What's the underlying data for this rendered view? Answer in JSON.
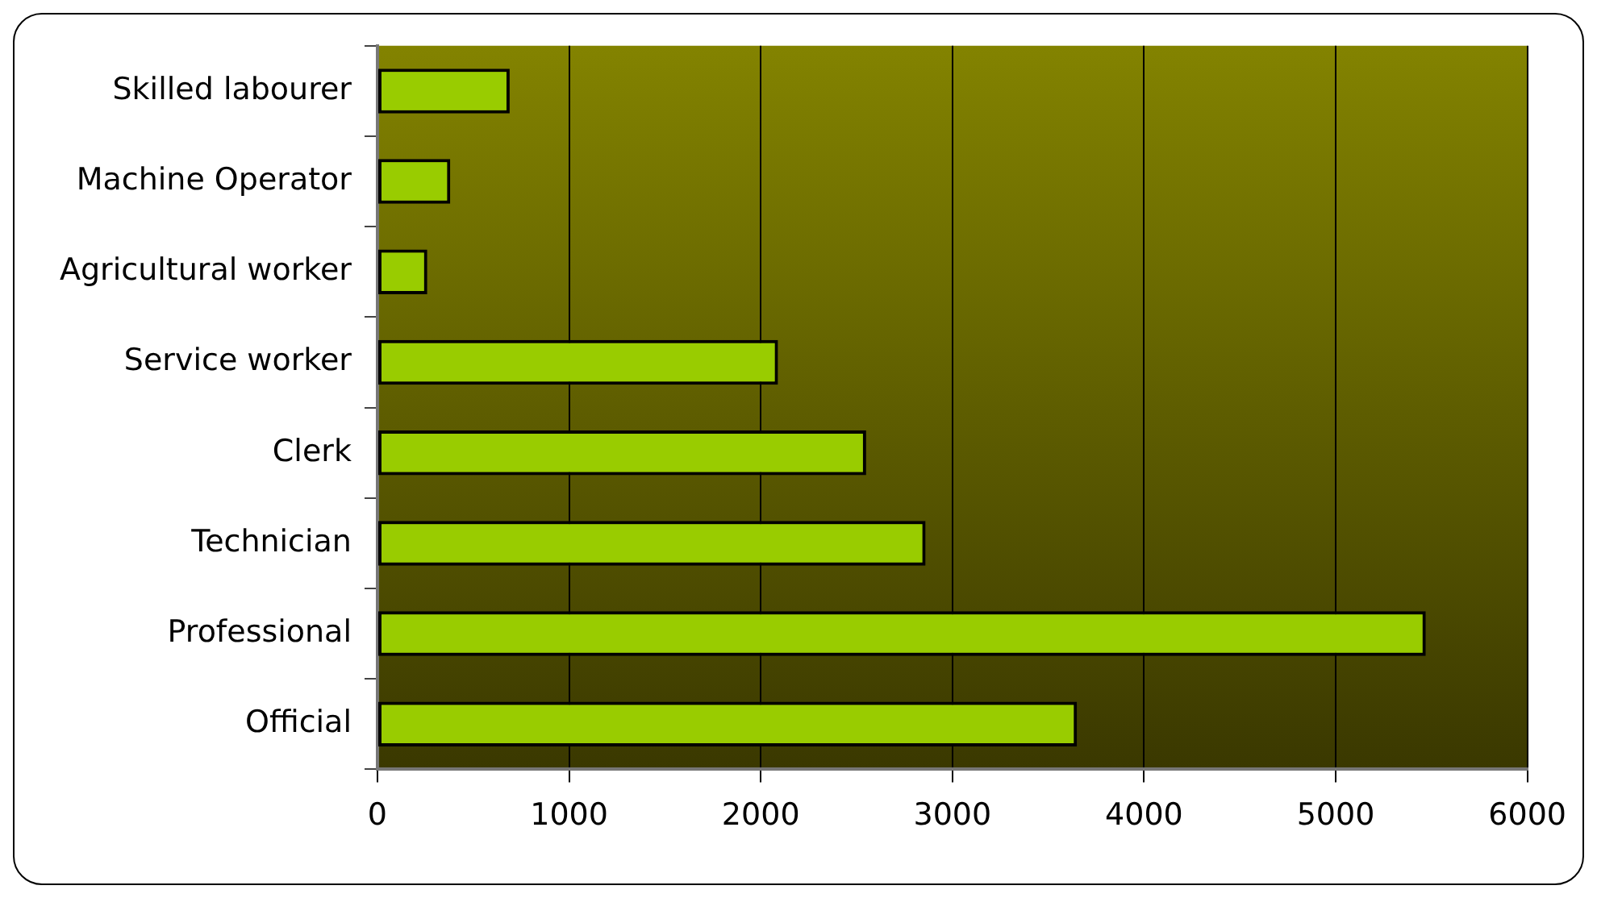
{
  "chart_data": {
    "type": "bar",
    "orientation": "horizontal",
    "categories": [
      "Skilled labourer",
      "Machine Operator",
      "Agricultural worker",
      "Service worker",
      "Clerk",
      "Technician",
      "Professional",
      "Official"
    ],
    "values": [
      690,
      380,
      260,
      2090,
      2550,
      2860,
      5470,
      3650
    ],
    "color": "#99cc00",
    "xlim": [
      0,
      6000
    ],
    "xticks": [
      0,
      1000,
      2000,
      3000,
      4000,
      5000,
      6000
    ],
    "grid": "x",
    "legend": false
  }
}
